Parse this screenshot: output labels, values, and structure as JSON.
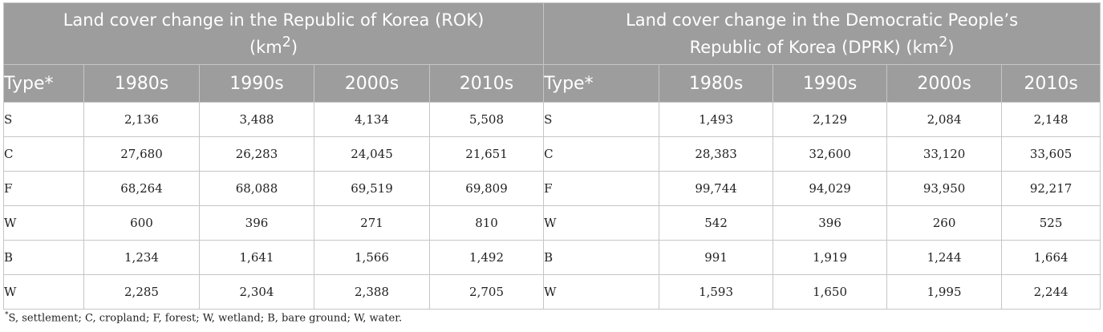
{
  "table": {
    "rok_caption": "Land cover change in the Republic of Korea (ROK)",
    "rok_unit_prefix": "(km",
    "rok_unit_exp": "2",
    "rok_unit_suffix": ")",
    "dprk_caption_line1": "Land cover change in the Democratic People’s",
    "dprk_caption_line2": "Republic of Korea (DPRK) (km",
    "dprk_unit_exp": "2",
    "dprk_unit_suffix": ")",
    "headers": [
      "Type*",
      "1980s",
      "1990s",
      "2000s",
      "2010s",
      "Type*",
      "1980s",
      "1990s",
      "2000s",
      "2010s"
    ],
    "rows": [
      [
        "S",
        "2,136",
        "3,488",
        "4,134",
        "5,508",
        "S",
        "1,493",
        "2,129",
        "2,084",
        "2,148"
      ],
      [
        "C",
        "27,680",
        "26,283",
        "24,045",
        "21,651",
        "C",
        "28,383",
        "32,600",
        "33,120",
        "33,605"
      ],
      [
        "F",
        "68,264",
        "68,088",
        "69,519",
        "69,809",
        "F",
        "99,744",
        "94,029",
        "93,950",
        "92,217"
      ],
      [
        "W",
        "600",
        "396",
        "271",
        "810",
        "W",
        "542",
        "396",
        "260",
        "525"
      ],
      [
        "B",
        "1,234",
        "1,641",
        "1,566",
        "1,492",
        "B",
        "991",
        "1,919",
        "1,244",
        "1,664"
      ],
      [
        "W",
        "2,285",
        "2,304",
        "2,388",
        "2,705",
        "W",
        "1,593",
        "1,650",
        "1,995",
        "2,244"
      ]
    ]
  },
  "footnote": {
    "marker": "*",
    "text": "S, settlement; C, cropland; F, forest; W, wetland; B, bare ground; W, water."
  },
  "colors": {
    "header_bg": "#9d9d9d",
    "header_text": "#ffffff",
    "grid": "#c6c6c6"
  }
}
